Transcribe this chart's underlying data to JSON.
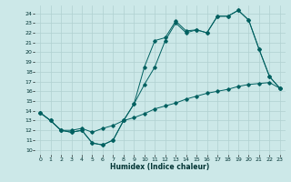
{
  "xlabel": "Humidex (Indice chaleur)",
  "background_color": "#cce8e8",
  "grid_color": "#b0d0d0",
  "line_color": "#006060",
  "xlim": [
    -0.5,
    23.5
  ],
  "ylim": [
    9.5,
    24.8
  ],
  "xticks": [
    0,
    1,
    2,
    3,
    4,
    5,
    6,
    7,
    8,
    9,
    10,
    11,
    12,
    13,
    14,
    15,
    16,
    17,
    18,
    19,
    20,
    21,
    22,
    23
  ],
  "yticks": [
    10,
    11,
    12,
    13,
    14,
    15,
    16,
    17,
    18,
    19,
    20,
    21,
    22,
    23,
    24
  ],
  "line1_x": [
    0,
    1,
    2,
    3,
    4,
    5,
    6,
    7,
    8,
    9,
    10,
    11,
    12,
    13,
    14,
    15,
    16,
    17,
    18,
    19,
    20,
    21,
    22,
    23
  ],
  "line1_y": [
    13.8,
    13.0,
    12.0,
    11.8,
    12.0,
    10.7,
    10.5,
    11.0,
    13.0,
    14.7,
    18.5,
    21.2,
    21.5,
    23.2,
    22.2,
    22.3,
    22.0,
    23.7,
    23.7,
    24.3,
    23.3,
    20.3,
    17.5,
    16.3
  ],
  "line2_x": [
    0,
    1,
    2,
    3,
    4,
    5,
    6,
    7,
    8,
    9,
    10,
    11,
    12,
    13,
    14,
    15,
    16,
    17,
    18,
    19,
    20,
    21,
    22,
    23
  ],
  "line2_y": [
    13.8,
    13.0,
    12.0,
    11.8,
    12.0,
    10.7,
    10.5,
    11.0,
    13.0,
    14.7,
    16.7,
    18.5,
    21.2,
    23.0,
    22.0,
    22.3,
    22.0,
    23.7,
    23.7,
    24.3,
    23.3,
    20.3,
    17.5,
    16.3
  ],
  "line3_x": [
    0,
    1,
    2,
    3,
    4,
    5,
    6,
    7,
    8,
    9,
    10,
    11,
    12,
    13,
    14,
    15,
    16,
    17,
    18,
    19,
    20,
    21,
    22,
    23
  ],
  "line3_y": [
    13.8,
    13.0,
    12.0,
    12.0,
    12.2,
    11.8,
    12.2,
    12.5,
    13.0,
    13.3,
    13.7,
    14.2,
    14.5,
    14.8,
    15.2,
    15.5,
    15.8,
    16.0,
    16.2,
    16.5,
    16.7,
    16.8,
    16.9,
    16.3
  ]
}
